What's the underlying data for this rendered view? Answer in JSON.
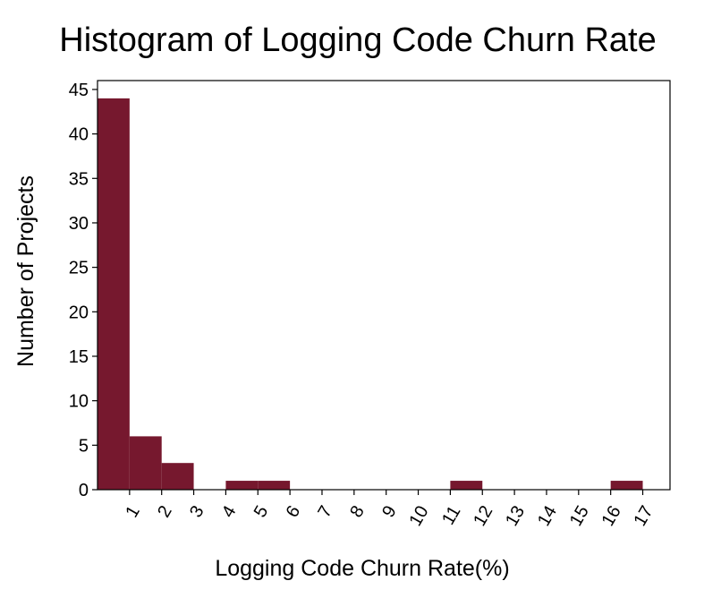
{
  "chart_data": {
    "type": "bar",
    "title": "Histogram of Logging Code Churn Rate",
    "xlabel": "Logging Code Churn Rate(%)",
    "ylabel": "Number of Projects",
    "x_ticks": [
      "1",
      "2",
      "3",
      "4",
      "5",
      "6",
      "7",
      "8",
      "9",
      "10",
      "11",
      "12",
      "13",
      "14",
      "15",
      "16",
      "17"
    ],
    "bins": [
      {
        "start": 0,
        "end": 1,
        "count": 44
      },
      {
        "start": 1,
        "end": 2,
        "count": 6
      },
      {
        "start": 2,
        "end": 3,
        "count": 3
      },
      {
        "start": 3,
        "end": 4,
        "count": 0
      },
      {
        "start": 4,
        "end": 5,
        "count": 1
      },
      {
        "start": 5,
        "end": 6,
        "count": 1
      },
      {
        "start": 6,
        "end": 7,
        "count": 0
      },
      {
        "start": 7,
        "end": 8,
        "count": 0
      },
      {
        "start": 8,
        "end": 9,
        "count": 0
      },
      {
        "start": 9,
        "end": 10,
        "count": 0
      },
      {
        "start": 10,
        "end": 11,
        "count": 0
      },
      {
        "start": 11,
        "end": 12,
        "count": 1
      },
      {
        "start": 12,
        "end": 13,
        "count": 0
      },
      {
        "start": 13,
        "end": 14,
        "count": 0
      },
      {
        "start": 14,
        "end": 15,
        "count": 0
      },
      {
        "start": 15,
        "end": 16,
        "count": 0
      },
      {
        "start": 16,
        "end": 17,
        "count": 1
      }
    ],
    "xlim": [
      0,
      17.85
    ],
    "ylim": [
      0,
      46
    ],
    "y_ticks": [
      0,
      5,
      10,
      15,
      20,
      25,
      30,
      35,
      40,
      45
    ],
    "grid": false,
    "legend": "none",
    "bar_color": "#76182e"
  }
}
